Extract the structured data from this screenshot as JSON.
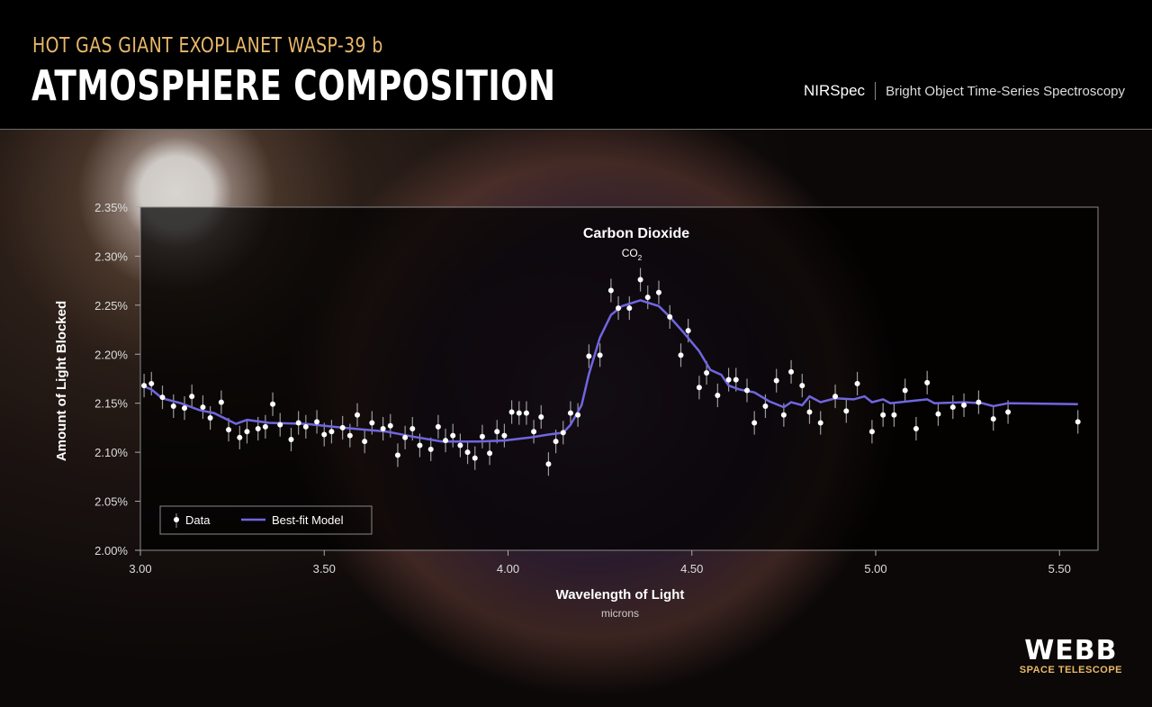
{
  "header": {
    "subtitle": "HOT GAS GIANT EXOPLANET WASP-39 b",
    "title": "ATMOSPHERE COMPOSITION",
    "instrument": "NIRSpec",
    "mode": "Bright Object Time-Series Spectroscopy"
  },
  "logo": {
    "name": "WEBB",
    "sub": "SPACE TELESCOPE"
  },
  "chart_data": {
    "type": "scatter",
    "xlabel": "Wavelength of Light",
    "xunit": "microns",
    "ylabel": "Amount of Light Blocked",
    "xlim": [
      3.0,
      5.6
    ],
    "ylim": [
      2.0,
      2.35
    ],
    "xticks": [
      "3.00",
      "3.50",
      "4.00",
      "4.50",
      "5.00",
      "5.50"
    ],
    "yticks": [
      "2.00%",
      "2.05%",
      "2.10%",
      "2.15%",
      "2.20%",
      "2.25%",
      "2.30%",
      "2.35%"
    ],
    "annotation": {
      "text": "Carbon Dioxide",
      "formula": "CO",
      "subscript": "2",
      "x": 4.36
    },
    "legend": {
      "placement": "bottom-left",
      "data_label": "Data",
      "model_label": "Best-fit Model"
    },
    "colors": {
      "data": "#ffffff",
      "model": "#7066e0",
      "errorbar": "#9a9a9a"
    },
    "grid": false,
    "data": {
      "name": "Data",
      "yerr": 0.012,
      "x": [
        3.01,
        3.03,
        3.06,
        3.09,
        3.12,
        3.14,
        3.17,
        3.19,
        3.22,
        3.24,
        3.27,
        3.29,
        3.32,
        3.34,
        3.36,
        3.38,
        3.41,
        3.43,
        3.45,
        3.48,
        3.5,
        3.52,
        3.55,
        3.57,
        3.59,
        3.61,
        3.63,
        3.66,
        3.68,
        3.7,
        3.72,
        3.74,
        3.76,
        3.79,
        3.81,
        3.83,
        3.85,
        3.87,
        3.89,
        3.91,
        3.93,
        3.95,
        3.97,
        3.99,
        4.01,
        4.03,
        4.05,
        4.07,
        4.09,
        4.11,
        4.13,
        4.15,
        4.17,
        4.19,
        4.22,
        4.25,
        4.28,
        4.3,
        4.33,
        4.36,
        4.38,
        4.41,
        4.44,
        4.47,
        4.49,
        4.52,
        4.54,
        4.57,
        4.6,
        4.62,
        4.65,
        4.67,
        4.7,
        4.73,
        4.75,
        4.77,
        4.8,
        4.82,
        4.85,
        4.89,
        4.92,
        4.95,
        4.99,
        5.02,
        5.05,
        5.08,
        5.11,
        5.14,
        5.17,
        5.21,
        5.24,
        5.28,
        5.32,
        5.36,
        5.55
      ],
      "y": [
        2.168,
        2.17,
        2.156,
        2.147,
        2.145,
        2.157,
        2.146,
        2.135,
        2.151,
        2.123,
        2.115,
        2.121,
        2.124,
        2.126,
        2.149,
        2.128,
        2.113,
        2.13,
        2.126,
        2.131,
        2.118,
        2.121,
        2.125,
        2.117,
        2.138,
        2.111,
        2.13,
        2.124,
        2.127,
        2.097,
        2.115,
        2.124,
        2.107,
        2.103,
        2.126,
        2.112,
        2.117,
        2.107,
        2.1,
        2.094,
        2.116,
        2.099,
        2.121,
        2.117,
        2.141,
        2.14,
        2.14,
        2.121,
        2.136,
        2.088,
        2.111,
        2.12,
        2.14,
        2.138,
        2.198,
        2.199,
        2.265,
        2.247,
        2.247,
        2.276,
        2.258,
        2.263,
        2.238,
        2.199,
        2.224,
        2.166,
        2.181,
        2.158,
        2.174,
        2.174,
        2.163,
        2.13,
        2.147,
        2.173,
        2.138,
        2.182,
        2.168,
        2.141,
        2.13,
        2.157,
        2.142,
        2.17,
        2.121,
        2.138,
        2.138,
        2.163,
        2.124,
        2.171,
        2.139,
        2.146,
        2.148,
        2.151,
        2.134,
        2.141,
        2.131
      ]
    },
    "model": {
      "name": "Best-fit Model",
      "x": [
        3.005,
        3.03,
        3.06,
        3.11,
        3.16,
        3.2,
        3.26,
        3.29,
        3.35,
        3.45,
        3.55,
        3.67,
        3.74,
        3.82,
        3.92,
        3.99,
        4.06,
        4.11,
        4.15,
        4.17,
        4.2,
        4.22,
        4.25,
        4.28,
        4.31,
        4.36,
        4.41,
        4.44,
        4.48,
        4.52,
        4.55,
        4.58,
        4.6,
        4.63,
        4.67,
        4.71,
        4.75,
        4.77,
        4.8,
        4.82,
        4.85,
        4.89,
        4.94,
        4.97,
        4.99,
        5.02,
        5.04,
        5.14,
        5.16,
        5.24,
        5.29,
        5.32,
        5.36,
        5.55
      ],
      "y": [
        2.168,
        2.164,
        2.155,
        2.15,
        2.143,
        2.14,
        2.129,
        2.133,
        2.13,
        2.129,
        2.125,
        2.121,
        2.116,
        2.111,
        2.111,
        2.112,
        2.115,
        2.118,
        2.12,
        2.128,
        2.148,
        2.18,
        2.217,
        2.24,
        2.249,
        2.255,
        2.249,
        2.238,
        2.221,
        2.203,
        2.184,
        2.179,
        2.168,
        2.164,
        2.161,
        2.152,
        2.146,
        2.151,
        2.148,
        2.157,
        2.151,
        2.155,
        2.154,
        2.157,
        2.151,
        2.154,
        2.15,
        2.154,
        2.15,
        2.151,
        2.15,
        2.147,
        2.15,
        2.149
      ]
    }
  }
}
